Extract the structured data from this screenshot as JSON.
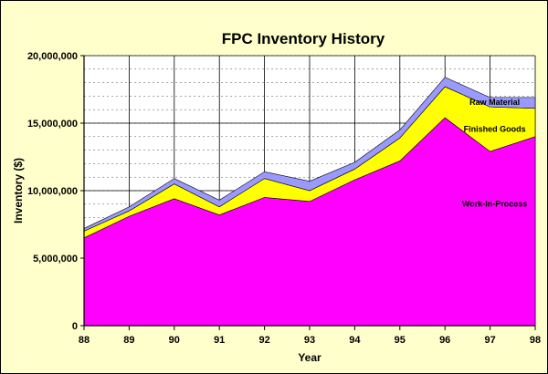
{
  "chart_data": {
    "type": "area",
    "stacked": true,
    "title": "FPC Inventory History",
    "xlabel": "Year",
    "ylabel": "Inventory ($)",
    "categories": [
      "88",
      "89",
      "90",
      "91",
      "92",
      "93",
      "94",
      "95",
      "96",
      "97",
      "98"
    ],
    "ylim": [
      0,
      20000000
    ],
    "yticks": [
      "0",
      "5,000,000",
      "10,000,000",
      "15,000,000",
      "20,000,000"
    ],
    "grid": true,
    "series": [
      {
        "name": "Work-In-Process",
        "color": "#FF00FF",
        "values": [
          6500000,
          8100000,
          9400000,
          8200000,
          9500000,
          9200000,
          10800000,
          12200000,
          15400000,
          12900000,
          14000000
        ]
      },
      {
        "name": "Finished Goods",
        "color": "#FFFF00",
        "values": [
          500000,
          400000,
          1100000,
          600000,
          1400000,
          800000,
          800000,
          1700000,
          2300000,
          3300000,
          2100000
        ]
      },
      {
        "name": "Raw Material",
        "color": "#9999FF",
        "values": [
          200000,
          300000,
          400000,
          500000,
          500000,
          700000,
          500000,
          600000,
          700000,
          700000,
          800000
        ]
      }
    ]
  }
}
